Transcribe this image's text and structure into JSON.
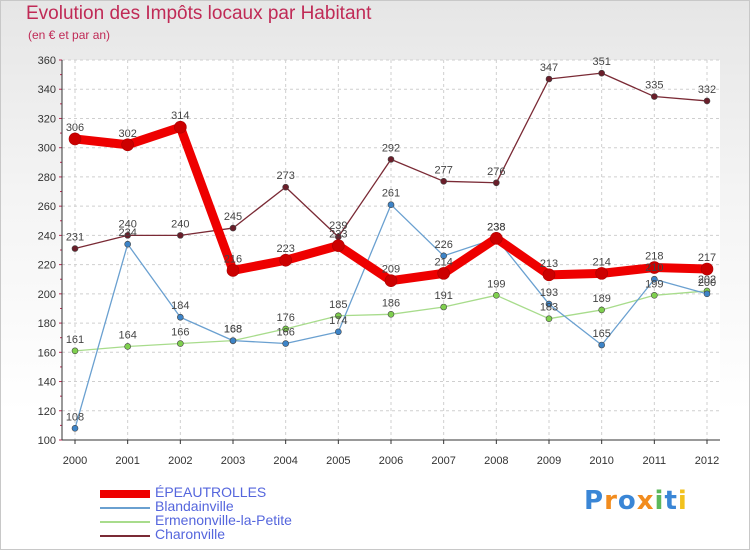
{
  "header": {
    "title": "Evolution des Impôts locaux par Habitant",
    "subtitle": "(en € et par an)"
  },
  "logo": {
    "text": "Proxiti"
  },
  "chart_data": {
    "type": "line",
    "title": "Evolution des Impôts locaux par Habitant",
    "subtitle": "(en € et par an)",
    "xlabel": "",
    "ylabel": "",
    "ylim": [
      100,
      360
    ],
    "yticks": [
      100,
      120,
      140,
      160,
      180,
      200,
      220,
      240,
      260,
      280,
      300,
      320,
      340,
      360
    ],
    "grid": true,
    "legend_position": "bottom-left",
    "categories": [
      "2000",
      "2001",
      "2002",
      "2003",
      "2004",
      "2005",
      "2006",
      "2007",
      "2008",
      "2009",
      "2010",
      "2011",
      "2012"
    ],
    "series": [
      {
        "name": "Charonville",
        "color": "#7a2a35",
        "marker": "#6a1e2a",
        "values": [
          231,
          240,
          240,
          245,
          273,
          239,
          292,
          277,
          276,
          347,
          351,
          335,
          332
        ]
      },
      {
        "name": "Ermenonville-la-Petite",
        "color": "#a8dc8c",
        "marker": "#7fd04e",
        "values": [
          161,
          164,
          166,
          168,
          176,
          185,
          186,
          191,
          199,
          183,
          189,
          199,
          202
        ]
      },
      {
        "name": "Blandainville",
        "color": "#6aa0d0",
        "marker": "#3d84c8",
        "values": [
          108,
          234,
          184,
          168,
          166,
          174,
          261,
          226,
          238,
          193,
          165,
          210,
          200
        ]
      },
      {
        "name": "ÉPEAUTROLLES",
        "color": "#ee0000",
        "marker": "#cc0000",
        "values": [
          306,
          302,
          314,
          216,
          223,
          233,
          209,
          214,
          238,
          213,
          214,
          218,
          217
        ]
      }
    ]
  }
}
